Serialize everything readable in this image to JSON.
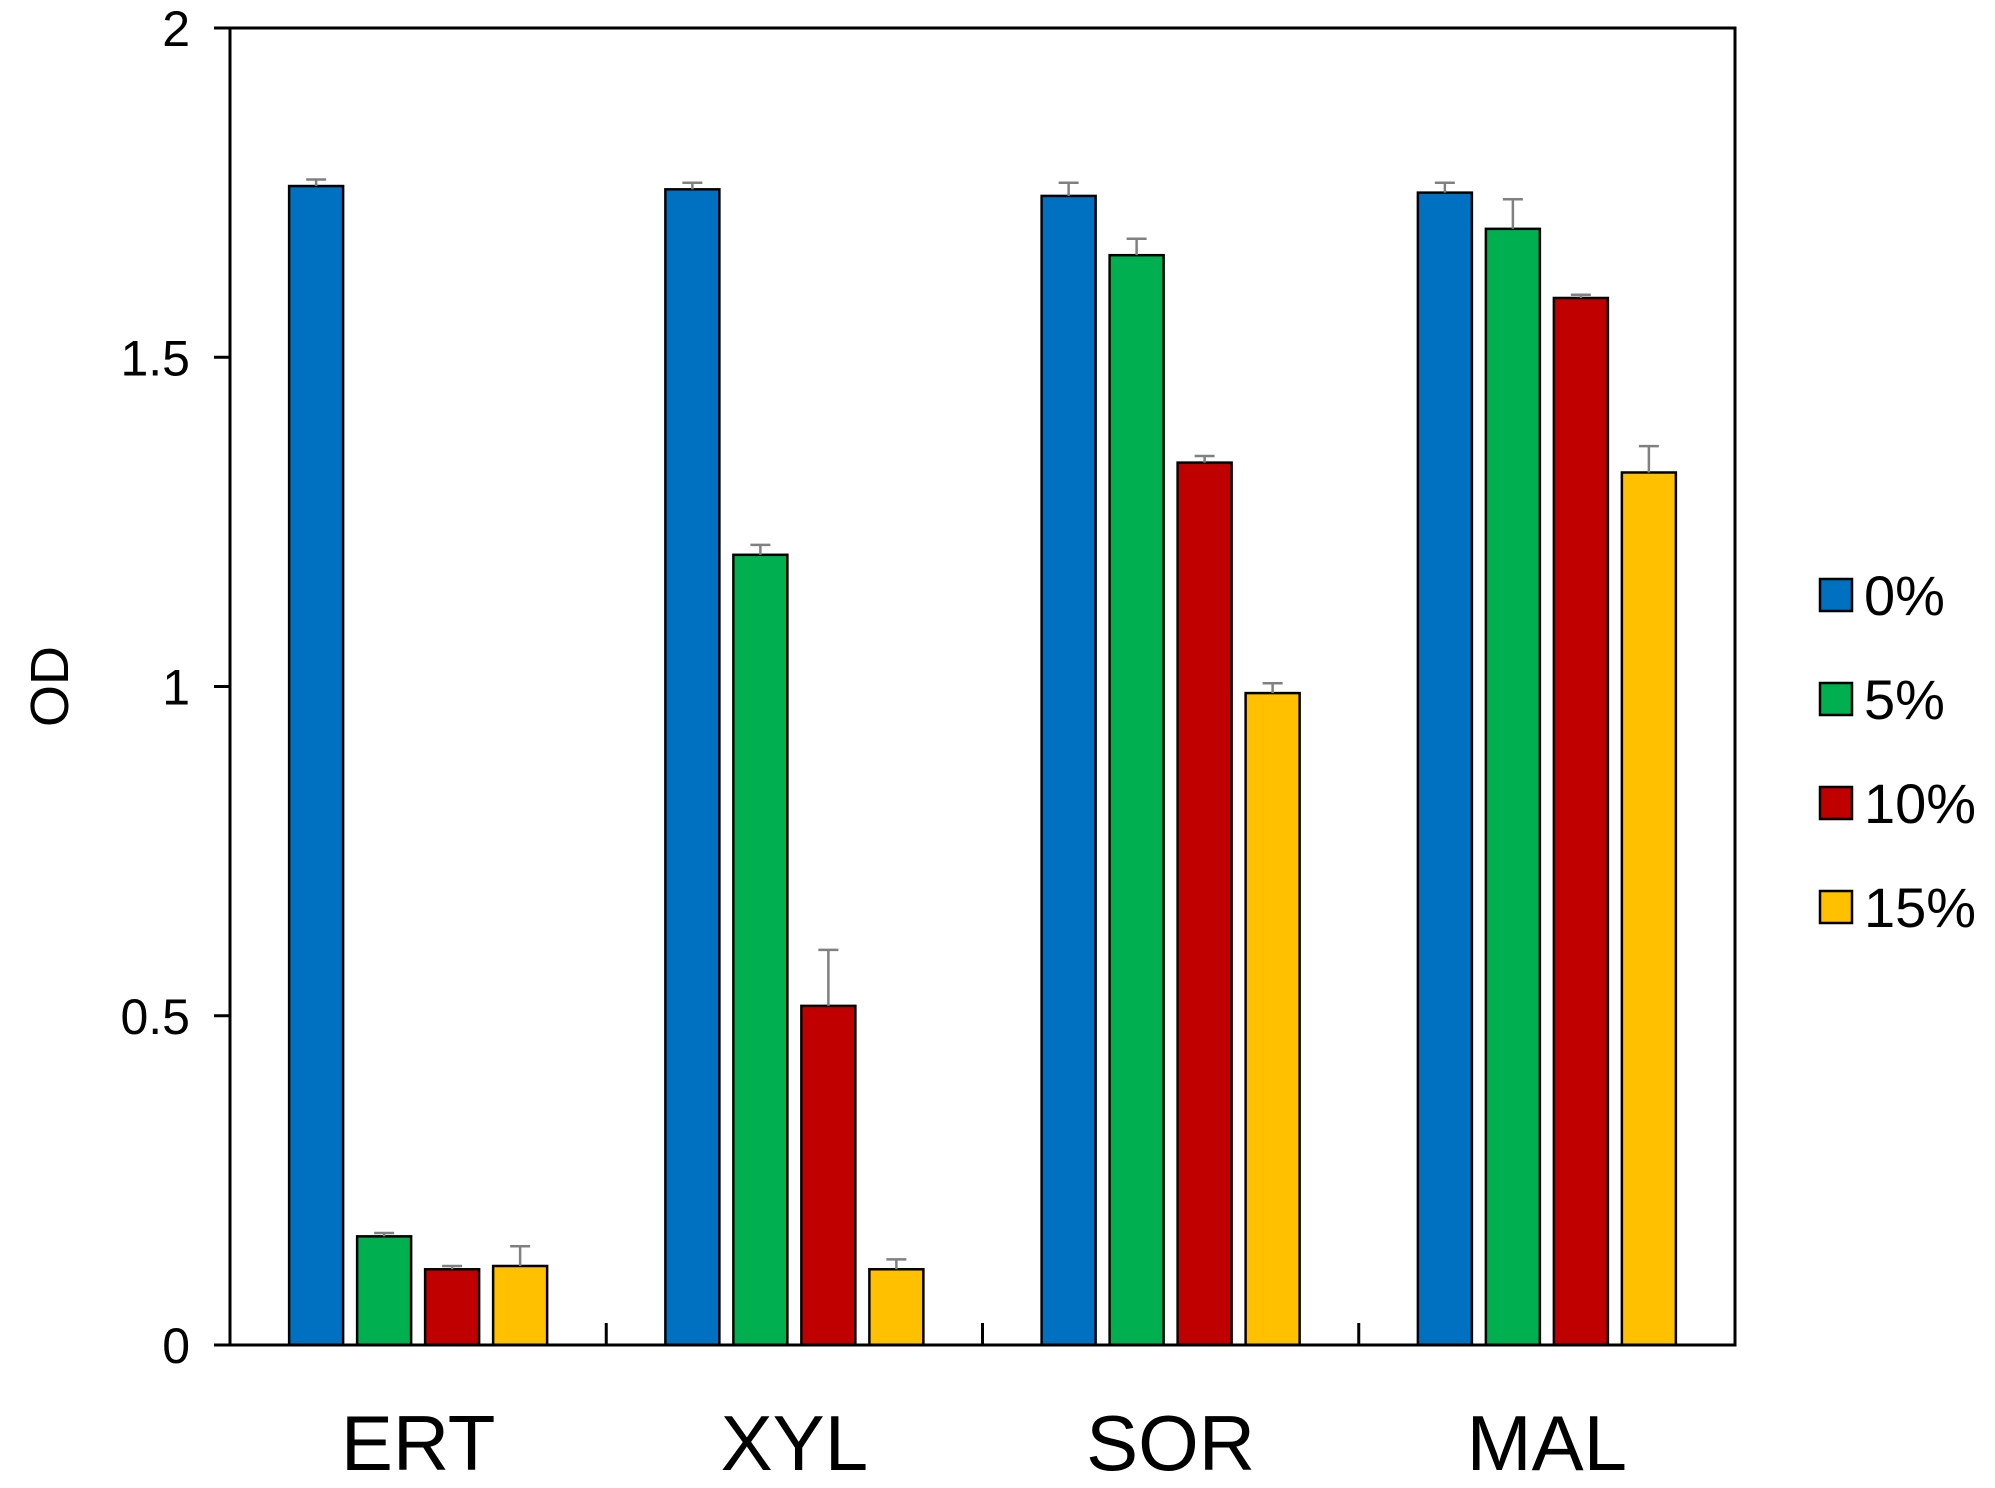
{
  "chart_data": {
    "type": "bar",
    "title": "",
    "xlabel": "",
    "ylabel": "OD",
    "ylim": [
      0,
      2
    ],
    "yticks": [
      {
        "value": 0,
        "label": "0"
      },
      {
        "value": 0.5,
        "label": "0.5"
      },
      {
        "value": 1,
        "label": "1"
      },
      {
        "value": 1.5,
        "label": "1.5"
      },
      {
        "value": 2,
        "label": "2"
      }
    ],
    "categories": [
      "ERT",
      "XYL",
      "SOR",
      "MAL"
    ],
    "series": [
      {
        "name": "0%",
        "color": "#0070C0",
        "values": [
          1.76,
          1.755,
          1.745,
          1.75
        ],
        "errors": [
          0.01,
          0.01,
          0.02,
          0.015
        ]
      },
      {
        "name": "5%",
        "color": "#00B050",
        "values": [
          0.165,
          1.2,
          1.655,
          1.695
        ],
        "errors": [
          0.005,
          0.015,
          0.025,
          0.045
        ]
      },
      {
        "name": "10%",
        "color": "#C00000",
        "values": [
          0.115,
          0.515,
          1.34,
          1.59
        ],
        "errors": [
          0.005,
          0.085,
          0.01,
          0.005
        ]
      },
      {
        "name": "15%",
        "color": "#FFC000",
        "values": [
          0.12,
          0.115,
          0.99,
          1.325
        ],
        "errors": [
          0.03,
          0.015,
          0.015,
          0.04
        ]
      }
    ],
    "legend_position": "right",
    "grid": false,
    "error_bars": true
  }
}
